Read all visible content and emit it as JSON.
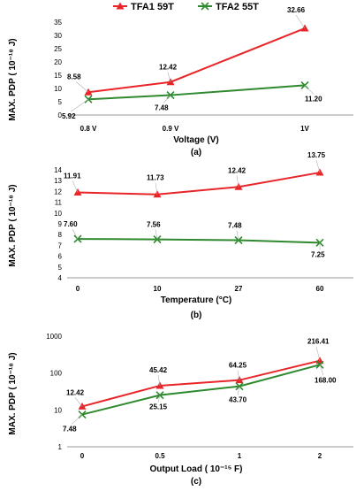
{
  "legend": {
    "items": [
      {
        "name": "TFA1 59T",
        "color": "#e8262a",
        "marker": "triangle"
      },
      {
        "name": "TFA2 55T",
        "color": "#2f8a2f",
        "marker": "x"
      }
    ]
  },
  "chart_data": [
    {
      "type": "line",
      "panel_label": "(a)",
      "xlabel": "Voltage (V)",
      "ylabel": "MAX. PDP (  10⁻¹⁸ J)",
      "categories": [
        "0.8 V",
        "0.9 V",
        "1V"
      ],
      "y_ticks": [
        "0",
        "5",
        "10",
        "15",
        "20",
        "25",
        "30",
        "35"
      ],
      "ylim": [
        0,
        35
      ],
      "log_scale": false,
      "grid": false,
      "legend_position": "top",
      "series": [
        {
          "name": "TFA1 59T",
          "values": [
            8.58,
            12.42,
            32.66
          ],
          "labels": [
            "8.58",
            "12.42",
            "32.66"
          ]
        },
        {
          "name": "TFA2 55T",
          "values": [
            5.92,
            7.48,
            11.2
          ],
          "labels": [
            "5.92",
            "7.48",
            "11.20"
          ]
        }
      ]
    },
    {
      "type": "line",
      "panel_label": "(b)",
      "xlabel": "Temperature (°C)",
      "ylabel": "MAX. PDP (  10⁻¹⁸ J)",
      "categories": [
        "0",
        "10",
        "27",
        "60"
      ],
      "y_ticks": [
        "4",
        "5",
        "6",
        "7",
        "8",
        "9",
        "10",
        "11",
        "12",
        "13",
        "14"
      ],
      "ylim": [
        4,
        14
      ],
      "log_scale": false,
      "grid": false,
      "series": [
        {
          "name": "TFA1 59T",
          "values": [
            11.91,
            11.73,
            12.42,
            13.75
          ],
          "labels": [
            "11.91",
            "11.73",
            "12.42",
            "13.75"
          ]
        },
        {
          "name": "TFA2 55T",
          "values": [
            7.6,
            7.56,
            7.48,
            7.25
          ],
          "labels": [
            "7.60",
            "7.56",
            "7.48",
            "7.25"
          ]
        }
      ]
    },
    {
      "type": "line",
      "panel_label": "(c)",
      "xlabel": "Output Load (  10⁻¹⁵ F)",
      "ylabel": "MAX. PDP (  10⁻¹⁸ J)",
      "categories": [
        "0",
        "0.5",
        "1",
        "2"
      ],
      "y_ticks": [
        "1",
        "10",
        "100",
        "1000"
      ],
      "ylim": [
        1,
        1000
      ],
      "log_scale": true,
      "grid": false,
      "series": [
        {
          "name": "TFA1 59T",
          "values": [
            12.42,
            45.42,
            64.25,
            216.41
          ],
          "labels": [
            "12.42",
            "45.42",
            "64.25",
            "216.41"
          ]
        },
        {
          "name": "TFA2 55T",
          "values": [
            7.48,
            25.15,
            43.7,
            168.0
          ],
          "labels": [
            "7.48",
            "25.15",
            "43.70",
            "168.00"
          ]
        }
      ]
    }
  ]
}
